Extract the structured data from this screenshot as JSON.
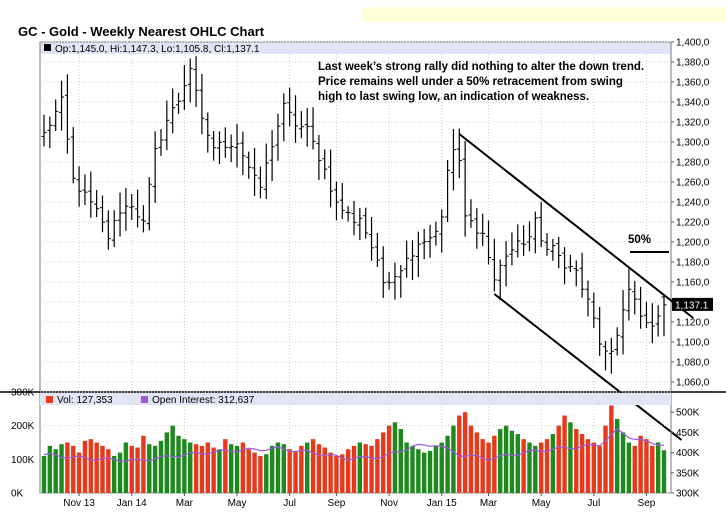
{
  "chart_data": {
    "type": "ohlc",
    "title": "GC - Gold - Weekly Nearest OHLC Chart",
    "legend": {
      "ohlc": "Op:1,145.0, Hi:1,147.3, Lo:1,105.8, Cl:1,137.1",
      "volume": "Vol: 127,353",
      "open_interest": "Open Interest: 312,637"
    },
    "annotations": [
      "Last week’s strong rally did nothing to alter the down trend.",
      "Price remains well under a 50% retracement from swing",
      "high to last swing low, an indication of weakness."
    ],
    "retracement_label": "50%",
    "retracement_level": 1190,
    "last_price_label": "1,137.1",
    "price_axis": {
      "ylim": [
        1050,
        1400
      ],
      "ticks": [
        "1,400,0",
        "1,380,0",
        "1,360,0",
        "1,340,0",
        "1,320,0",
        "1,300,0",
        "1,280,0",
        "1,260,0",
        "1,240,0",
        "1,220,0",
        "1,200,0",
        "1,180,0",
        "1,160,0",
        "1,140,0",
        "1,120,0",
        "1,100,0",
        "1,080,0",
        "1,060,0"
      ]
    },
    "volume_axis": {
      "ylim": [
        0,
        300000
      ],
      "ticks": [
        "300K",
        "200K",
        "100K",
        "0K"
      ]
    },
    "oi_axis": {
      "ylim": [
        300000,
        550000
      ],
      "ticks": [
        "500K",
        "450K",
        "400K",
        "350K",
        "300K"
      ]
    },
    "x_labels": [
      "Nov 13",
      "Jan 14",
      "Mar",
      "May",
      "Jul",
      "Sep",
      "Nov",
      "Jan 15",
      "Mar",
      "May",
      "Jul",
      "Sep"
    ],
    "x_label_weeks": [
      6,
      15,
      24,
      33,
      42,
      50,
      59,
      68,
      76,
      85,
      94,
      103
    ],
    "price_waypoints": [
      [
        0,
        1308
      ],
      [
        3,
        1340
      ],
      [
        5,
        1262
      ],
      [
        9,
        1230
      ],
      [
        11,
        1205
      ],
      [
        13,
        1232
      ],
      [
        15,
        1238
      ],
      [
        17,
        1218
      ],
      [
        19,
        1290
      ],
      [
        21,
        1322
      ],
      [
        23,
        1342
      ],
      [
        25,
        1375
      ],
      [
        27,
        1320
      ],
      [
        29,
        1295
      ],
      [
        31,
        1298
      ],
      [
        33,
        1300
      ],
      [
        36,
        1262
      ],
      [
        37,
        1255
      ],
      [
        39,
        1298
      ],
      [
        41,
        1335
      ],
      [
        43,
        1318
      ],
      [
        45,
        1312
      ],
      [
        48,
        1272
      ],
      [
        50,
        1238
      ],
      [
        53,
        1222
      ],
      [
        54,
        1225
      ],
      [
        56,
        1195
      ],
      [
        58,
        1160
      ],
      [
        60,
        1168
      ],
      [
        62,
        1182
      ],
      [
        64,
        1200
      ],
      [
        66,
        1205
      ],
      [
        68,
        1222
      ],
      [
        69,
        1272
      ],
      [
        70,
        1292
      ],
      [
        71,
        1278
      ],
      [
        72,
        1225
      ],
      [
        75,
        1208
      ],
      [
        77,
        1162
      ],
      [
        79,
        1188
      ],
      [
        83,
        1205
      ],
      [
        84,
        1220
      ],
      [
        85,
        1200
      ],
      [
        87,
        1195
      ],
      [
        89,
        1175
      ],
      [
        91,
        1170
      ],
      [
        93,
        1140
      ],
      [
        95,
        1098
      ],
      [
        97,
        1090
      ],
      [
        98,
        1105
      ],
      [
        100,
        1152
      ],
      [
        102,
        1130
      ],
      [
        103,
        1115
      ],
      [
        104,
        1120
      ],
      [
        106,
        1137
      ]
    ],
    "oi_waypoints": [
      [
        0,
        395
      ],
      [
        8,
        385
      ],
      [
        16,
        380
      ],
      [
        24,
        395
      ],
      [
        32,
        405
      ],
      [
        40,
        410
      ],
      [
        46,
        400
      ],
      [
        52,
        385
      ],
      [
        58,
        390
      ],
      [
        63,
        415
      ],
      [
        67,
        420
      ],
      [
        71,
        395
      ],
      [
        76,
        385
      ],
      [
        82,
        400
      ],
      [
        88,
        410
      ],
      [
        92,
        415
      ],
      [
        95,
        420
      ],
      [
        98,
        455
      ],
      [
        100,
        440
      ],
      [
        103,
        425
      ],
      [
        106,
        420
      ]
    ],
    "volume_series": [
      110,
      140,
      130,
      145,
      150,
      140,
      120,
      155,
      160,
      150,
      140,
      130,
      110,
      120,
      150,
      140,
      135,
      170,
      145,
      140,
      155,
      180,
      200,
      170,
      160,
      150,
      145,
      140,
      150,
      135,
      130,
      160,
      145,
      140,
      150,
      130,
      120,
      110,
      115,
      140,
      150,
      145,
      130,
      125,
      140,
      150,
      160,
      145,
      135,
      120,
      110,
      115,
      130,
      140,
      150,
      145,
      140,
      160,
      180,
      200,
      210,
      190,
      150,
      140,
      130,
      120,
      125,
      140,
      150,
      170,
      200,
      230,
      240,
      200,
      180,
      160,
      150,
      170,
      190,
      200,
      185,
      175,
      160,
      150,
      140,
      150,
      160,
      175,
      200,
      230,
      210,
      190,
      175,
      160,
      150,
      140,
      200,
      260,
      220,
      180,
      150,
      140,
      170,
      160,
      140,
      150,
      127
    ],
    "trend_lines": [
      {
        "from": [
          71,
          1308
        ],
        "to": [
          111,
          1124
        ]
      },
      {
        "from": [
          77,
          1148
        ],
        "to": [
          109,
          1002
        ]
      }
    ],
    "grid": true
  }
}
